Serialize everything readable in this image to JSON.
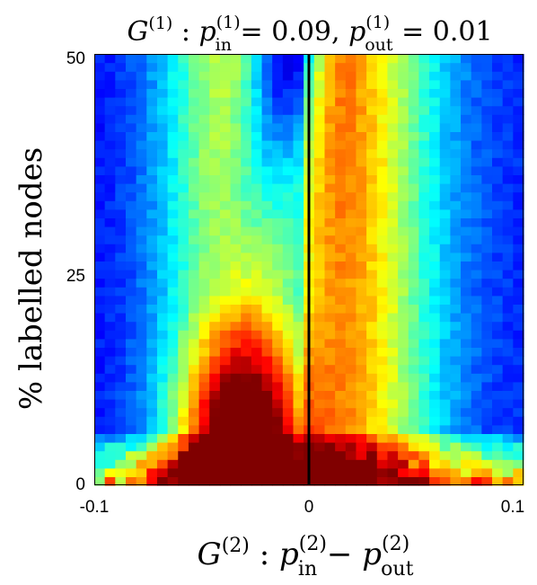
{
  "chart_data": {
    "type": "heatmap",
    "title": {
      "graph": "G",
      "graph_sup": "(1)",
      "p_in_sub": "in",
      "p_in_sup": "(1)",
      "p_in_value": "0.09",
      "p_out_sub": "out",
      "p_out_sup": "(1)",
      "p_out_value": "0.01"
    },
    "xlabel": {
      "graph": "G",
      "graph_sup": "(2)",
      "p_in_sub": "in",
      "p_in_sup": "(2)",
      "p_out_sub": "out",
      "p_out_sup": "(2)"
    },
    "ylabel": "% labelled nodes",
    "xlim": [
      -0.1,
      0.1
    ],
    "ylim": [
      0,
      50
    ],
    "x_ticks": [
      {
        "value": -0.1,
        "label": "-0.1"
      },
      {
        "value": 0,
        "label": "0"
      },
      {
        "value": 0.1,
        "label": "0.1"
      }
    ],
    "y_ticks": [
      {
        "value": 0,
        "label": "0"
      },
      {
        "value": 25,
        "label": "25"
      },
      {
        "value": 50,
        "label": "50"
      }
    ],
    "vertical_line": {
      "x": 0,
      "color": "#000000"
    },
    "grid": {
      "columns": 41,
      "rows": 50
    },
    "colormap": "jet"
  }
}
